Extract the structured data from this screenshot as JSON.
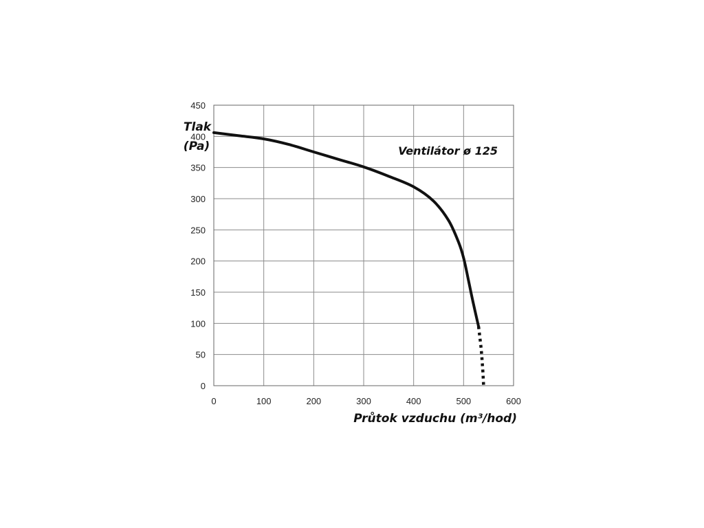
{
  "chart_data": {
    "type": "line",
    "xlabel": "Průtok vzduchu (m³/hod)",
    "ylabel_line1": "Tlak",
    "ylabel_line2": "(Pa)",
    "annotation": "Ventilátor ø 125",
    "xlim": [
      0,
      600
    ],
    "ylim": [
      0,
      450
    ],
    "xticks": [
      0,
      100,
      200,
      300,
      400,
      500,
      600
    ],
    "yticks": [
      0,
      50,
      100,
      150,
      200,
      250,
      300,
      350,
      400,
      450
    ],
    "grid": true,
    "series": [
      {
        "style": "solid",
        "color": "#111111",
        "points": [
          [
            0,
            406
          ],
          [
            50,
            401
          ],
          [
            100,
            396
          ],
          [
            150,
            387
          ],
          [
            200,
            375
          ],
          [
            250,
            363
          ],
          [
            300,
            351
          ],
          [
            350,
            336
          ],
          [
            400,
            319
          ],
          [
            440,
            296
          ],
          [
            470,
            265
          ],
          [
            490,
            230
          ],
          [
            500,
            205
          ],
          [
            510,
            168
          ],
          [
            520,
            130
          ],
          [
            530,
            95
          ]
        ]
      },
      {
        "style": "dotted",
        "color": "#111111",
        "points": [
          [
            530,
            95
          ],
          [
            535,
            60
          ],
          [
            538,
            30
          ],
          [
            540,
            0
          ]
        ]
      }
    ]
  }
}
